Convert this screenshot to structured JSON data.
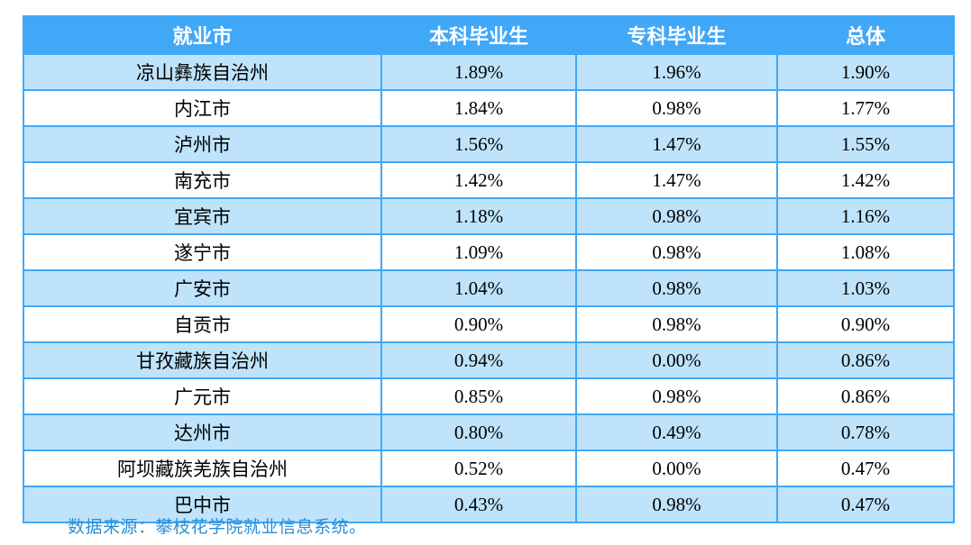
{
  "table": {
    "columns": [
      "就业市",
      "本科毕业生",
      "专科毕业生",
      "总体"
    ],
    "rows": [
      [
        "凉山彝族自治州",
        "1.89%",
        "1.96%",
        "1.90%"
      ],
      [
        "内江市",
        "1.84%",
        "0.98%",
        "1.77%"
      ],
      [
        "泸州市",
        "1.56%",
        "1.47%",
        "1.55%"
      ],
      [
        "南充市",
        "1.42%",
        "1.47%",
        "1.42%"
      ],
      [
        "宜宾市",
        "1.18%",
        "0.98%",
        "1.16%"
      ],
      [
        "遂宁市",
        "1.09%",
        "0.98%",
        "1.08%"
      ],
      [
        "广安市",
        "1.04%",
        "0.98%",
        "1.03%"
      ],
      [
        "自贡市",
        "0.90%",
        "0.98%",
        "0.90%"
      ],
      [
        "甘孜藏族自治州",
        "0.94%",
        "0.00%",
        "0.86%"
      ],
      [
        "广元市",
        "0.85%",
        "0.98%",
        "0.86%"
      ],
      [
        "达州市",
        "0.80%",
        "0.49%",
        "0.78%"
      ],
      [
        "阿坝藏族羌族自治州",
        "0.52%",
        "0.00%",
        "0.47%"
      ],
      [
        "巴中市",
        "0.43%",
        "0.98%",
        "0.47%"
      ]
    ]
  },
  "footer": {
    "source_note": "数据来源：攀枝花学院就业信息系统。"
  },
  "colors": {
    "header_bg": "#41a8f7",
    "border": "#41a8f7",
    "row_alt_bg": "#bfe3fb",
    "row_bg": "#ffffff",
    "header_text": "#ffffff",
    "cell_text": "#000000",
    "source_note_text": "#2b8ed5"
  }
}
